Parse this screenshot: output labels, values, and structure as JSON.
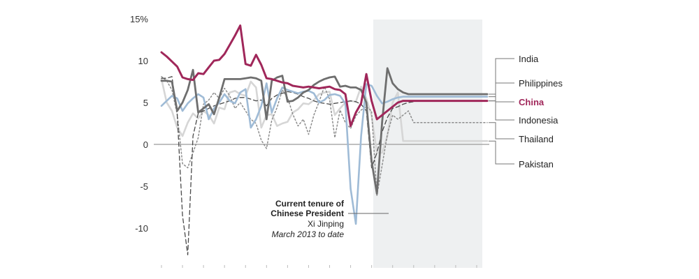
{
  "chart_data": {
    "type": "line",
    "title": "",
    "xlabel": "",
    "ylabel": "",
    "ylim": [
      -14,
      15
    ],
    "y_ticks": [
      "15%",
      "10",
      "5",
      "0",
      "-5",
      "-10"
    ],
    "y_tick_values": [
      15,
      10,
      5,
      0,
      -5,
      -10
    ],
    "x": [
      0,
      1,
      2,
      3,
      4,
      5,
      6,
      7,
      8,
      9,
      10,
      11,
      12,
      13,
      14,
      15,
      16,
      17,
      18,
      19,
      20,
      21,
      22,
      23,
      24,
      25,
      26,
      27,
      28,
      29,
      30,
      31,
      32,
      33,
      34,
      35,
      36,
      37,
      38,
      39,
      40,
      41,
      42,
      43,
      44,
      45,
      46,
      47,
      48,
      49,
      50,
      51,
      52,
      53,
      54,
      55,
      56,
      57,
      58,
      59,
      60,
      61,
      62
    ],
    "xlim": [
      0,
      62
    ],
    "shaded_region": {
      "from_x": 41,
      "to_x": 62,
      "label_lines": [
        "Current tenure of",
        "Chinese President",
        "Xi Jinping",
        "March 2013 to date"
      ]
    },
    "series": [
      {
        "name": "India",
        "color": "#6e6e6e",
        "dash": "solid",
        "width": 2.8,
        "values": [
          7.6,
          7.6,
          7.5,
          4.0,
          5.0,
          6.5,
          8.9,
          3.8,
          4.3,
          4.8,
          3.6,
          5.6,
          7.8,
          7.8,
          7.8,
          7.8,
          7.9,
          8.0,
          7.9,
          7.6,
          3.0,
          7.6,
          8.0,
          8.2,
          5.1,
          5.2,
          5.6,
          6.2,
          6.5,
          7.1,
          7.5,
          7.8,
          8.0,
          8.1,
          6.9,
          7.0,
          6.8,
          6.8,
          6.5,
          5.0,
          -2.0,
          -5.9,
          2.7,
          9.1,
          7.3,
          6.6,
          6.2,
          6.0,
          6.0,
          6.0,
          6.0,
          6.0,
          6.0,
          6.0,
          6.0,
          6.0,
          6.0,
          6.0,
          6.0,
          6.0,
          6.0,
          6.0,
          6.0
        ]
      },
      {
        "name": "Philippines",
        "color": "#4a4a4a",
        "dash": "6 4",
        "width": 1.3,
        "values": [
          7.9,
          7.9,
          8.1,
          3.6,
          -8.5,
          -13.2,
          1.0,
          3.7,
          4.0,
          4.3,
          4.6,
          4.8,
          5.0,
          5.2,
          5.5,
          5.6,
          5.6,
          5.4,
          5.2,
          5.3,
          4.6,
          5.5,
          5.9,
          6.1,
          6.3,
          6.2,
          6.0,
          5.7,
          5.5,
          5.2,
          5.0,
          4.9,
          4.8,
          4.9,
          5.0,
          5.1,
          5.2,
          5.1,
          4.8,
          4.0,
          -2.8,
          -1.0,
          1.5,
          3.2,
          4.3,
          4.5,
          4.8,
          5.0,
          5.1,
          5.2,
          5.2,
          5.2,
          5.2,
          5.2,
          5.2,
          5.2,
          5.2,
          5.2,
          5.2,
          5.2,
          5.2,
          5.2,
          5.2
        ]
      },
      {
        "name": "China",
        "color": "#a0275a",
        "dash": "solid",
        "width": 3.0,
        "values": [
          11.0,
          10.5,
          9.9,
          9.3,
          8.0,
          7.8,
          7.7,
          8.5,
          8.4,
          9.2,
          10.0,
          10.1,
          10.8,
          11.9,
          13.0,
          14.2,
          9.6,
          9.4,
          10.7,
          9.5,
          7.9,
          7.8,
          7.6,
          7.4,
          7.3,
          7.0,
          6.9,
          6.8,
          6.9,
          6.8,
          6.7,
          6.8,
          6.9,
          6.6,
          6.5,
          6.0,
          2.2,
          3.8,
          4.9,
          8.4,
          5.2,
          3.0,
          3.5,
          4.0,
          4.5,
          5.0,
          5.2,
          5.2,
          5.2,
          5.2,
          5.2,
          5.2,
          5.2,
          5.2,
          5.2,
          5.2,
          5.2,
          5.2,
          5.2,
          5.2,
          5.2,
          5.2,
          5.2
        ]
      },
      {
        "name": "Indonesia",
        "color": "#9fbbd6",
        "dash": "solid",
        "width": 2.6,
        "values": [
          4.6,
          5.2,
          5.8,
          5.5,
          4.0,
          4.9,
          5.5,
          6.0,
          5.6,
          3.0,
          4.3,
          5.0,
          6.0,
          5.2,
          4.9,
          6.2,
          6.6,
          2.0,
          3.0,
          4.6,
          7.3,
          3.8,
          5.5,
          6.8,
          6.5,
          6.3,
          6.1,
          6.3,
          6.4,
          6.1,
          5.0,
          5.3,
          5.9,
          6.0,
          5.8,
          4.9,
          -5.3,
          -9.5,
          1.0,
          7.2,
          7.0,
          5.8,
          4.9,
          5.1,
          5.4,
          5.6,
          5.7,
          5.7,
          5.7,
          5.7,
          5.7,
          5.7,
          5.7,
          5.7,
          5.7,
          5.7,
          5.7,
          5.7,
          5.7,
          5.7,
          5.7,
          5.7,
          5.7
        ]
      },
      {
        "name": "Thailand",
        "color": "#8c8c8c",
        "dash": "2 3",
        "width": 1.5,
        "values": [
          8.1,
          7.6,
          6.5,
          3.6,
          -2.3,
          -2.8,
          -1.0,
          0.8,
          4.8,
          5.3,
          6.2,
          5.5,
          6.7,
          5.8,
          4.3,
          5.0,
          4.0,
          3.0,
          2.5,
          0.5,
          -0.5,
          2.9,
          4.4,
          6.5,
          5.6,
          3.6,
          2.2,
          3.0,
          1.2,
          3.5,
          5.1,
          6.9,
          5.4,
          0.8,
          4.1,
          2.6,
          1.9,
          3.4,
          4.1,
          4.5,
          4.0,
          -6.1,
          -2.5,
          1.2,
          3.5,
          3.0,
          3.5,
          4.0,
          2.6,
          2.6,
          2.6,
          2.6,
          2.6,
          2.6,
          2.6,
          2.6,
          2.6,
          2.6,
          2.6,
          2.6,
          2.6,
          2.6,
          2.6
        ]
      },
      {
        "name": "Pakistan",
        "color": "#d6d6d6",
        "dash": "solid",
        "width": 2.6,
        "values": [
          7.8,
          5.0,
          4.0,
          2.0,
          1.0,
          2.6,
          3.7,
          3.1,
          4.0,
          3.5,
          2.5,
          4.4,
          4.2,
          6.2,
          6.4,
          6.0,
          5.8,
          7.5,
          6.8,
          2.0,
          3.5,
          3.6,
          2.2,
          2.5,
          2.7,
          3.8,
          4.2,
          4.9,
          4.8,
          5.3,
          6.0,
          6.2,
          6.3,
          3.5,
          4.3,
          5.0,
          5.2,
          5.1,
          6.9,
          5.5,
          3.4,
          -1.0,
          -1.0,
          1.0,
          5.0,
          6.2,
          0.4,
          0.4,
          0.4,
          0.4,
          0.4,
          0.4,
          0.4,
          0.4,
          0.4,
          0.4,
          0.4,
          0.4,
          0.4,
          0.4,
          0.4,
          0.4,
          0.4
        ]
      }
    ],
    "legend": [
      {
        "label": "India",
        "series": "India"
      },
      {
        "label": "Philippines",
        "series": "Philippines"
      },
      {
        "label": "China",
        "series": "China"
      },
      {
        "label": "Indonesia",
        "series": "Indonesia"
      },
      {
        "label": "Thailand",
        "series": "Thailand"
      },
      {
        "label": "Pakistan",
        "series": "Pakistan"
      }
    ]
  }
}
